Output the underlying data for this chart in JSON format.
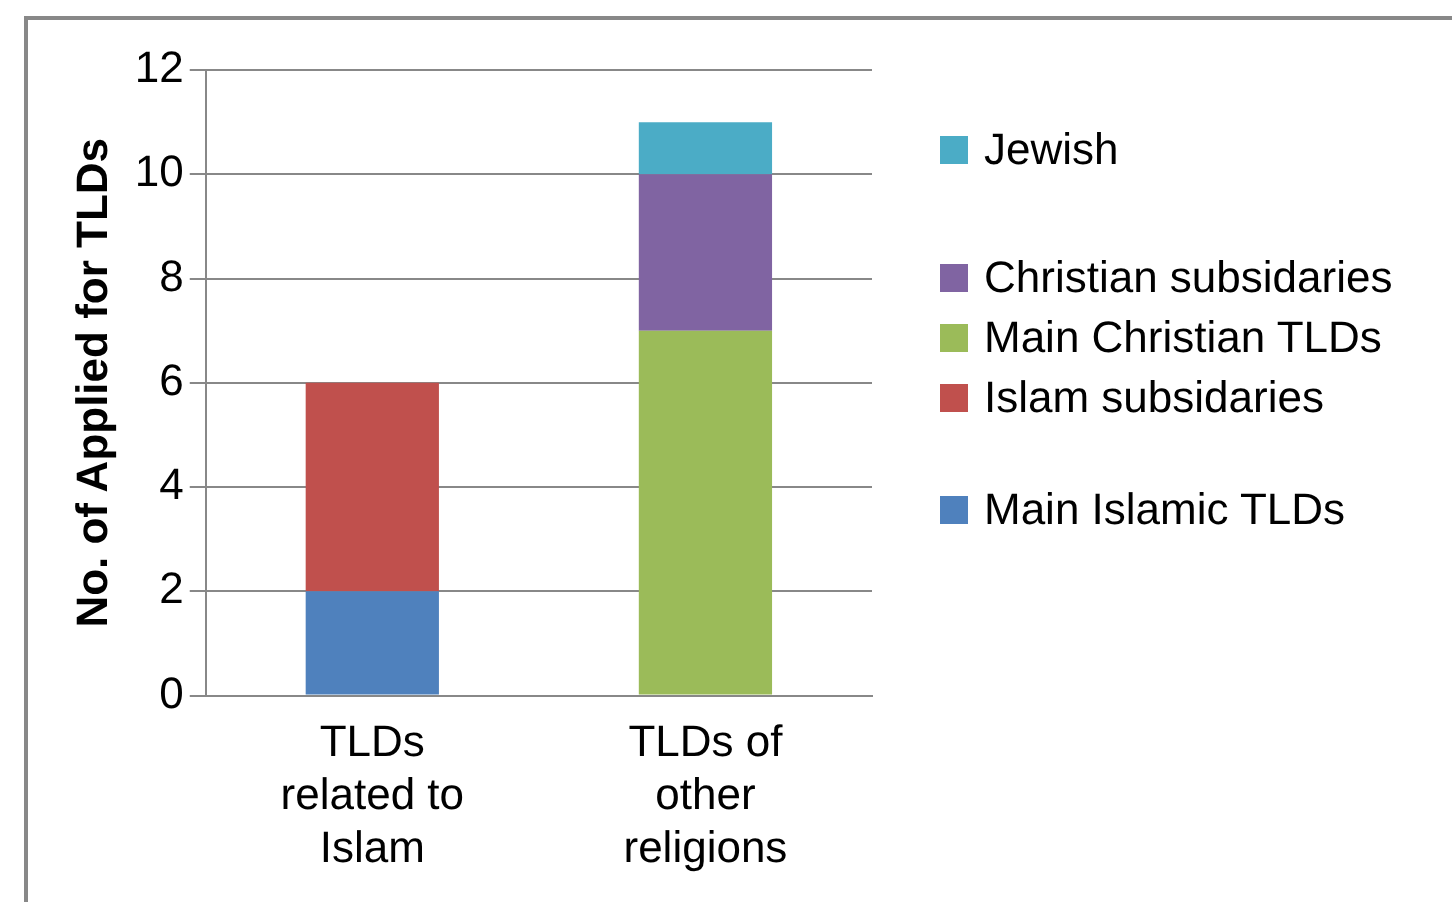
{
  "chart_data": {
    "type": "bar",
    "stacked": true,
    "ylabel": "No. of Applied for TLDs",
    "categories": [
      "TLDs related to Islam",
      "TLDs of other religions"
    ],
    "series": [
      {
        "name": "Main Islamic TLDs",
        "color": "#4f81bd",
        "values": [
          2,
          null
        ]
      },
      {
        "name": "Islam subsidaries",
        "color": "#c0504d",
        "values": [
          4,
          null
        ]
      },
      {
        "name": "Main Christian TLDs",
        "color": "#9bbb59",
        "values": [
          null,
          7
        ]
      },
      {
        "name": "Christian subsidaries",
        "color": "#8064a2",
        "values": [
          null,
          3
        ]
      },
      {
        "name": "Jewish",
        "color": "#4bacc6",
        "values": [
          null,
          1
        ]
      }
    ],
    "ylim": [
      0,
      12
    ],
    "yticks": [
      0,
      2,
      4,
      6,
      8,
      10,
      12
    ],
    "grid": "y",
    "legend": "right"
  }
}
